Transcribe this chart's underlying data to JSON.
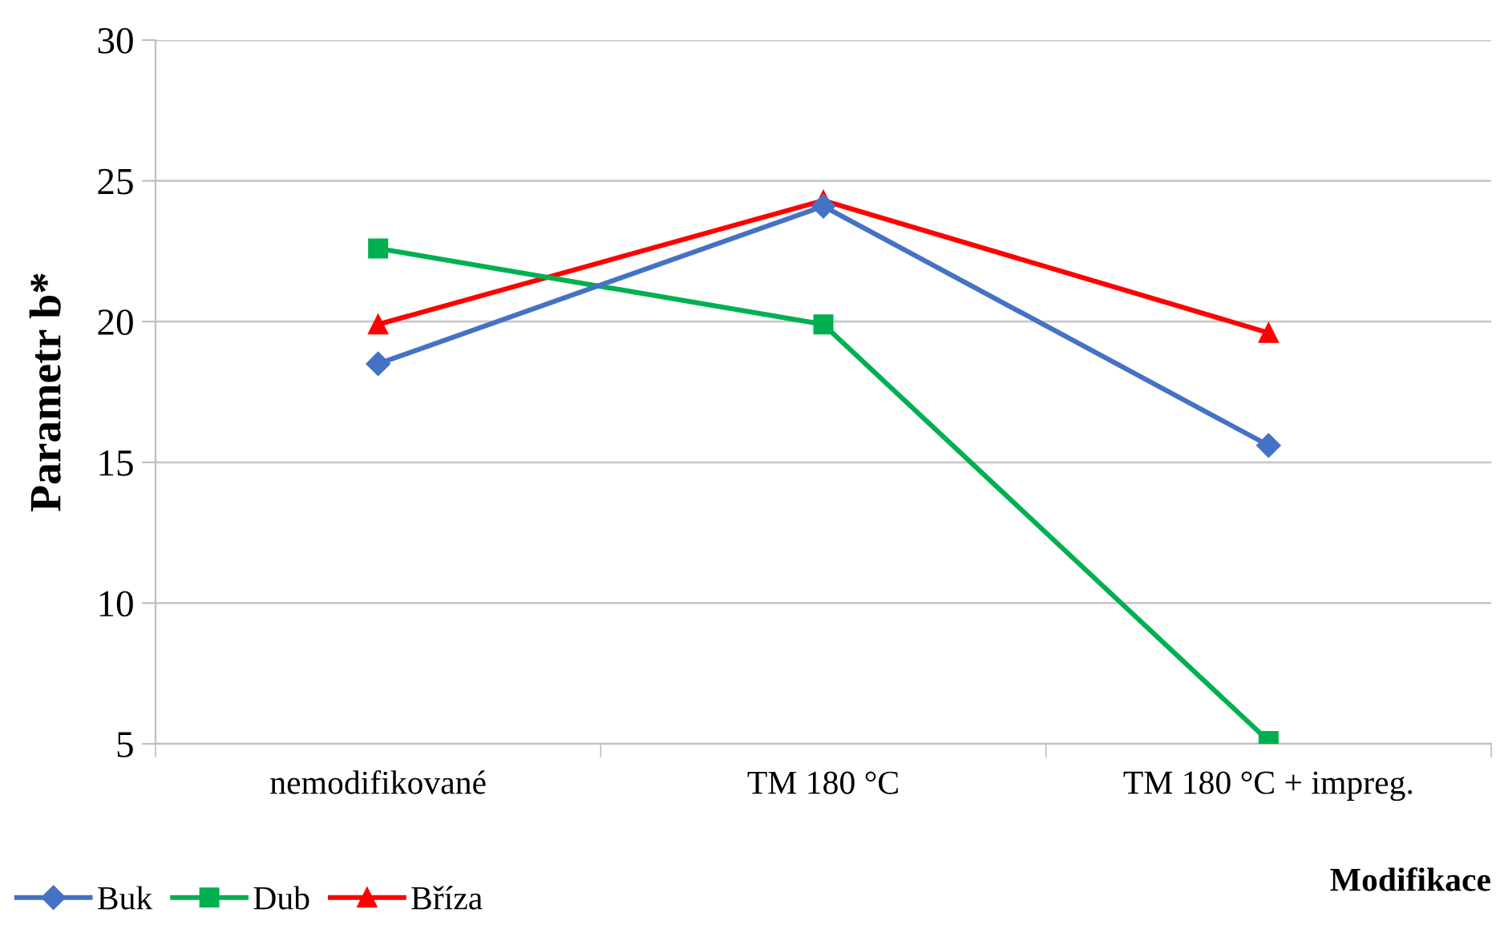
{
  "chart_data": {
    "type": "line",
    "ylabel": "Parametr b*",
    "xlabel": "Modifikace",
    "categories": [
      "nemodifikované",
      "TM 180 °C",
      "TM 180 °C + impreg."
    ],
    "series": [
      {
        "name": "Buk",
        "color": "#4472c4",
        "marker": "diamond",
        "values": [
          18.5,
          24.1,
          15.6
        ]
      },
      {
        "name": "Dub",
        "color": "#00b050",
        "marker": "square",
        "values": [
          22.6,
          19.9,
          5.1
        ]
      },
      {
        "name": "Bříza",
        "color": "#ff0000",
        "marker": "triangle",
        "values": [
          19.9,
          24.3,
          19.6
        ]
      }
    ],
    "ylim": [
      5,
      30
    ],
    "yticks": [
      5,
      10,
      15,
      20,
      25,
      30
    ],
    "grid": "y",
    "legend": "bottom left",
    "line_style": "solid"
  }
}
